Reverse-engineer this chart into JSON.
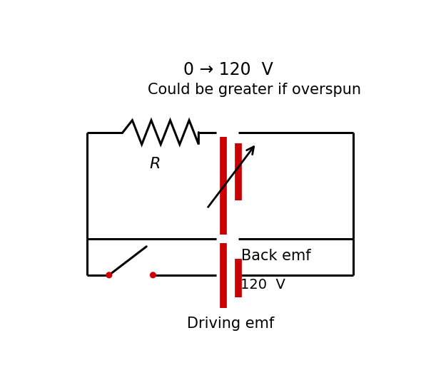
{
  "bg_color": "#ffffff",
  "line_color": "#000000",
  "red_color": "#cc0000",
  "title_line1": "0 → 120  V",
  "title_line2": "Could be greater if overspun",
  "label_back_emf": "Back emf",
  "label_driving_emf": "Driving emf",
  "label_120V": "120  V",
  "label_R": "R",
  "figsize": [
    6.25,
    5.33
  ],
  "dpi": 100
}
